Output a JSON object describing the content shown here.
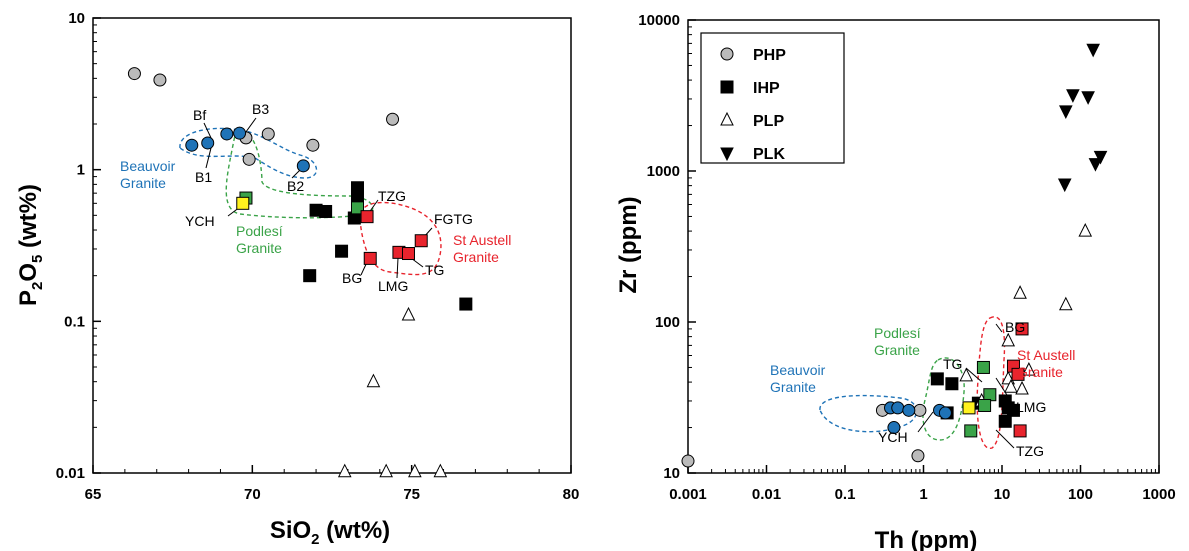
{
  "chart_data": [
    {
      "type": "scatter",
      "xlabel": "SiO2 (wt%)",
      "ylabel": "P2O5 (wt%)",
      "xlim": [
        65,
        80
      ],
      "ylim": [
        0.01,
        10
      ],
      "yscale": "log",
      "xticks": [
        "65",
        "70",
        "75",
        "80"
      ],
      "yticks": [
        "0.01",
        "0.1",
        "1",
        "10"
      ],
      "series": [
        {
          "name": "PHP",
          "marker": "circle",
          "color": "#bbbbbb",
          "points": [
            [
              66.3,
              4.3
            ],
            [
              67.1,
              3.9
            ],
            [
              70.5,
              1.72
            ],
            [
              71.9,
              1.45
            ],
            [
              69.9,
              1.17
            ],
            [
              74.4,
              2.15
            ],
            [
              69.8,
              1.62
            ]
          ]
        },
        {
          "name": "IHP",
          "marker": "square",
          "color": "#000000",
          "points": [
            [
              73.3,
              0.76
            ],
            [
              73.3,
              0.68
            ],
            [
              73.2,
              0.48
            ],
            [
              72.0,
              0.54
            ],
            [
              72.3,
              0.53
            ],
            [
              71.8,
              0.2
            ],
            [
              72.8,
              0.29
            ],
            [
              76.7,
              0.13
            ]
          ]
        },
        {
          "name": "PLP",
          "marker": "triangle-up",
          "color": "#ffffff",
          "points": [
            [
              74.9,
              0.11
            ],
            [
              73.8,
              0.04
            ],
            [
              72.9,
              0.0102
            ],
            [
              74.2,
              0.0102
            ],
            [
              75.1,
              0.0102
            ],
            [
              75.9,
              0.0102
            ]
          ]
        },
        {
          "name": "Beauvoir",
          "marker": "circle",
          "color": "#1f73b7",
          "points": [
            [
              68.1,
              1.45
            ],
            [
              68.6,
              1.5
            ],
            [
              69.2,
              1.72
            ],
            [
              69.6,
              1.74
            ],
            [
              71.6,
              1.06
            ]
          ]
        },
        {
          "name": "Podlesí",
          "marker": "square",
          "color": "#3aa348",
          "points": [
            [
              69.8,
              0.65
            ],
            [
              73.3,
              0.56
            ]
          ]
        },
        {
          "name": "YCH",
          "marker": "square",
          "color": "#fff21f",
          "points": [
            [
              69.7,
              0.6
            ]
          ]
        },
        {
          "name": "St Austell",
          "marker": "square",
          "color": "#e8242d",
          "points": [
            [
              73.6,
              0.49
            ],
            [
              73.7,
              0.26
            ],
            [
              74.6,
              0.285
            ],
            [
              74.9,
              0.28
            ],
            [
              75.3,
              0.34
            ]
          ]
        }
      ],
      "labels": [
        {
          "text": "Bf"
        },
        {
          "text": "B3"
        },
        {
          "text": "B1"
        },
        {
          "text": "B2"
        },
        {
          "text": "Beauvoir"
        },
        {
          "text": "Granite"
        },
        {
          "text": "YCH"
        },
        {
          "text": "Podlesí"
        },
        {
          "text": "Granite"
        },
        {
          "text": "TZG"
        },
        {
          "text": "FGTG"
        },
        {
          "text": "St Austell"
        },
        {
          "text": "Granite"
        },
        {
          "text": "BG"
        },
        {
          "text": "LMG"
        },
        {
          "text": "TG"
        }
      ]
    },
    {
      "type": "scatter",
      "xlabel": "Th (ppm)",
      "ylabel": "Zr (ppm)",
      "xlim": [
        0.001,
        1000
      ],
      "ylim": [
        10,
        10000
      ],
      "xscale": "log",
      "yscale": "log",
      "xticks": [
        "0.001",
        "0.01",
        "0.1",
        "1",
        "10",
        "100",
        "1000"
      ],
      "yticks": [
        "10",
        "100",
        "1000",
        "10000"
      ],
      "legend": {
        "position": "top-left",
        "entries": [
          {
            "label": "PHP",
            "marker": "circle",
            "color": "#bbbbbb"
          },
          {
            "label": "IHP",
            "marker": "square",
            "color": "#000000"
          },
          {
            "label": "PLP",
            "marker": "triangle-up",
            "color": "#ffffff"
          },
          {
            "label": "PLK",
            "marker": "triangle-down",
            "color": "#000000"
          }
        ]
      },
      "series": [
        {
          "name": "PHP",
          "marker": "circle",
          "color": "#bbbbbb",
          "points": [
            [
              0.001,
              12
            ],
            [
              0.3,
              26
            ],
            [
              0.9,
              26
            ],
            [
              0.85,
              13
            ]
          ]
        },
        {
          "name": "IHP",
          "marker": "square",
          "color": "#000000",
          "points": [
            [
              1.5,
              42
            ],
            [
              2.3,
              39
            ],
            [
              2,
              25
            ],
            [
              5,
              29
            ],
            [
              11,
              30
            ],
            [
              11,
              22
            ],
            [
              12,
              27
            ],
            [
              14,
              26
            ]
          ]
        },
        {
          "name": "PLP",
          "marker": "triangle-up",
          "color": "#ffffff",
          "points": [
            [
              3.5,
              44
            ],
            [
              5.5,
              30
            ],
            [
              12,
              75
            ],
            [
              12,
              42
            ],
            [
              13,
              37
            ],
            [
              18,
              36
            ],
            [
              17,
              155
            ],
            [
              22,
              48
            ],
            [
              65,
              130
            ],
            [
              115,
              400
            ]
          ]
        },
        {
          "name": "PLK",
          "marker": "triangle-down",
          "color": "#000000",
          "points": [
            [
              145,
              6400
            ],
            [
              80,
              3200
            ],
            [
              125,
              3100
            ],
            [
              65,
              2500
            ],
            [
              180,
              1250
            ],
            [
              155,
              1120
            ],
            [
              63,
              820
            ]
          ]
        },
        {
          "name": "Beauvoir",
          "marker": "circle",
          "color": "#1f73b7",
          "points": [
            [
              0.38,
              27
            ],
            [
              0.47,
              27
            ],
            [
              0.65,
              26
            ],
            [
              0.42,
              20
            ],
            [
              1.6,
              26
            ],
            [
              1.9,
              25
            ]
          ]
        },
        {
          "name": "Podlesí",
          "marker": "square",
          "color": "#3aa348",
          "points": [
            [
              5.8,
              50
            ],
            [
              4,
              19
            ],
            [
              7,
              33
            ],
            [
              6,
              28
            ]
          ]
        },
        {
          "name": "YCH",
          "marker": "square",
          "color": "#fff21f",
          "points": [
            [
              3.8,
              27
            ]
          ]
        },
        {
          "name": "St Austell",
          "marker": "square",
          "color": "#e8242d",
          "points": [
            [
              18,
              90
            ],
            [
              14,
              51
            ],
            [
              16,
              45
            ],
            [
              17,
              19
            ]
          ]
        }
      ],
      "labels": [
        {
          "text": "BG"
        },
        {
          "text": "Podlesí"
        },
        {
          "text": "Granite"
        },
        {
          "text": "TG"
        },
        {
          "text": "St Austell"
        },
        {
          "text": "Granite"
        },
        {
          "text": "Beauvoir"
        },
        {
          "text": "Granite"
        },
        {
          "text": "LMG"
        },
        {
          "text": "YCH"
        },
        {
          "text": "TZG"
        }
      ]
    }
  ]
}
